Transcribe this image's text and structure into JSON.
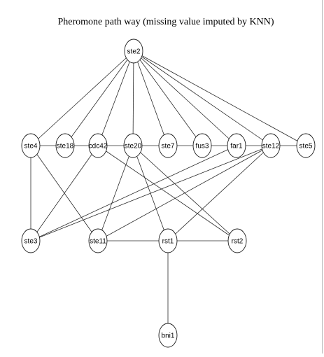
{
  "title": "Pheromone path way (missing value imputed by KNN)",
  "colors": {
    "background": "#ffffff",
    "edge": "#2a2a2a",
    "node_fill": "#ffffff",
    "node_stroke": "#1a1a1a",
    "text": "#000000"
  },
  "nodes": [
    {
      "id": "ste2",
      "label": "ste2"
    },
    {
      "id": "ste4",
      "label": "ste4"
    },
    {
      "id": "ste18",
      "label": "ste18"
    },
    {
      "id": "cdc42",
      "label": "cdc42"
    },
    {
      "id": "ste20",
      "label": "ste20"
    },
    {
      "id": "ste7",
      "label": "ste7"
    },
    {
      "id": "fus3",
      "label": "fus3"
    },
    {
      "id": "far1",
      "label": "far1"
    },
    {
      "id": "ste12",
      "label": "ste12"
    },
    {
      "id": "ste5",
      "label": "ste5"
    },
    {
      "id": "ste3",
      "label": "ste3"
    },
    {
      "id": "ste11",
      "label": "ste11"
    },
    {
      "id": "rst1",
      "label": "rst1"
    },
    {
      "id": "rst2",
      "label": "rst2"
    },
    {
      "id": "bni1",
      "label": "bni1"
    }
  ],
  "edges": [
    {
      "source": "ste2",
      "target": "ste4"
    },
    {
      "source": "ste2",
      "target": "ste18"
    },
    {
      "source": "ste2",
      "target": "cdc42"
    },
    {
      "source": "ste2",
      "target": "ste20"
    },
    {
      "source": "ste2",
      "target": "ste7"
    },
    {
      "source": "ste2",
      "target": "fus3"
    },
    {
      "source": "ste2",
      "target": "far1"
    },
    {
      "source": "ste2",
      "target": "ste12"
    },
    {
      "source": "ste2",
      "target": "ste5"
    },
    {
      "source": "ste4",
      "target": "ste18"
    },
    {
      "source": "ste18",
      "target": "cdc42"
    },
    {
      "source": "cdc42",
      "target": "ste20"
    },
    {
      "source": "ste20",
      "target": "ste7"
    },
    {
      "source": "ste7",
      "target": "fus3"
    },
    {
      "source": "fus3",
      "target": "far1"
    },
    {
      "source": "far1",
      "target": "ste12"
    },
    {
      "source": "ste12",
      "target": "ste5"
    },
    {
      "source": "ste4",
      "target": "ste3"
    },
    {
      "source": "ste4",
      "target": "ste11"
    },
    {
      "source": "cdc42",
      "target": "ste3"
    },
    {
      "source": "cdc42",
      "target": "rst2"
    },
    {
      "source": "ste20",
      "target": "ste11"
    },
    {
      "source": "ste20",
      "target": "rst1"
    },
    {
      "source": "ste20",
      "target": "rst2"
    },
    {
      "source": "far1",
      "target": "ste3"
    },
    {
      "source": "ste12",
      "target": "ste3"
    },
    {
      "source": "ste12",
      "target": "ste11"
    },
    {
      "source": "ste12",
      "target": "rst1"
    },
    {
      "source": "ste11",
      "target": "rst1"
    },
    {
      "source": "rst1",
      "target": "rst2"
    },
    {
      "source": "rst1",
      "target": "bni1"
    }
  ]
}
